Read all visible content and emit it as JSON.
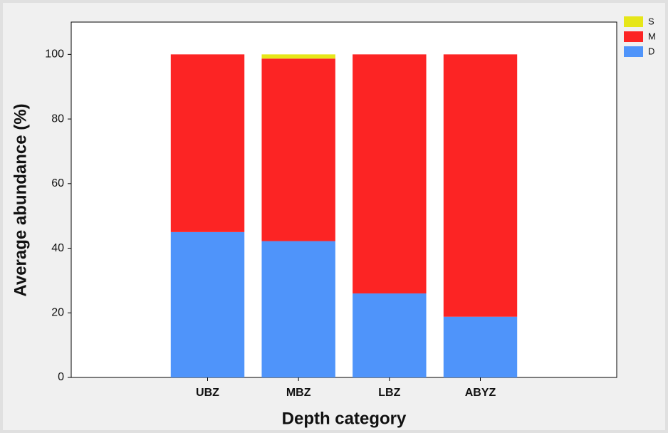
{
  "chart_data": {
    "type": "stacked_bar",
    "xlabel": "Depth category",
    "ylabel": "Average abundance (%)",
    "categories": [
      "UBZ",
      "MBZ",
      "LBZ",
      "ABYZ"
    ],
    "series": [
      {
        "name": "D",
        "color": "#4f94fa",
        "values": [
          45,
          42.2,
          26,
          18.8
        ]
      },
      {
        "name": "M",
        "color": "#fc2424",
        "values": [
          55,
          56.5,
          74,
          81.2
        ]
      },
      {
        "name": "S",
        "color": "#e6e619",
        "values": [
          0,
          1.3,
          0,
          0
        ]
      }
    ],
    "ylim": [
      0,
      110
    ],
    "yticks": [
      0,
      20,
      40,
      60,
      80,
      100
    ]
  }
}
